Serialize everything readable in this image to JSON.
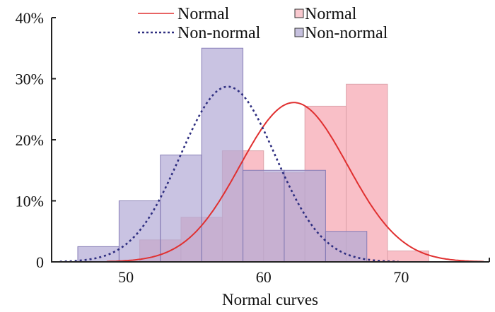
{
  "chart_data": {
    "type": "bar",
    "title": "",
    "xlabel": "Normal curves",
    "ylabel": "",
    "xlim": [
      44.6,
      76.4
    ],
    "ylim": [
      0,
      40
    ],
    "x_ticks": [
      50,
      60,
      70
    ],
    "x_tick_labels": [
      "50",
      "60",
      "70"
    ],
    "y_ticks": [
      0,
      10,
      20,
      30,
      40
    ],
    "y_tick_labels": [
      "0",
      "10%",
      "20%",
      "30%",
      "40%"
    ],
    "grid": false,
    "legend_position": "top-center",
    "histograms": [
      {
        "name": "Normal",
        "color": "#F9BCC4",
        "edge_color": "#D89EA6",
        "bins": [
          {
            "from": 51,
            "to": 54,
            "value": 3.6
          },
          {
            "from": 54,
            "to": 57,
            "value": 7.3
          },
          {
            "from": 57,
            "to": 60,
            "value": 18.2
          },
          {
            "from": 60,
            "to": 63,
            "value": 14.6
          },
          {
            "from": 63,
            "to": 66,
            "value": 25.5
          },
          {
            "from": 66,
            "to": 69,
            "value": 29.1
          },
          {
            "from": 69,
            "to": 72,
            "value": 1.8
          }
        ]
      },
      {
        "name": "Non-normal",
        "color": "#B2A9D6",
        "edge_color": "#7E74B0",
        "bins": [
          {
            "from": 46.5,
            "to": 49.5,
            "value": 2.5
          },
          {
            "from": 49.5,
            "to": 52.5,
            "value": 10
          },
          {
            "from": 52.5,
            "to": 55.5,
            "value": 17.5
          },
          {
            "from": 55.5,
            "to": 58.5,
            "value": 35
          },
          {
            "from": 58.5,
            "to": 61.5,
            "value": 15
          },
          {
            "from": 61.5,
            "to": 64.5,
            "value": 15
          },
          {
            "from": 64.5,
            "to": 67.5,
            "value": 5
          }
        ]
      }
    ],
    "curves": [
      {
        "name": "Normal",
        "style": "solid",
        "color": "#E03030",
        "mean": 62.2,
        "peak": 26.1,
        "sd": 3.9,
        "x_range": [
          48.6,
          76
        ]
      },
      {
        "name": "Non-normal",
        "style": "dotted",
        "color": "#2E2E80",
        "mean": 57.4,
        "peak": 28.7,
        "sd": 3.45,
        "x_range": [
          45.2,
          69.8
        ]
      }
    ],
    "legend": {
      "lines": [
        {
          "label": "Normal",
          "style": "solid",
          "color": "#E03030"
        },
        {
          "label": "Non-normal",
          "style": "dotted",
          "color": "#2E2E80"
        }
      ],
      "patches": [
        {
          "label": "Normal",
          "color": "#F9C9CF"
        },
        {
          "label": "Non-normal",
          "color": "#C6C0DE"
        }
      ]
    }
  }
}
